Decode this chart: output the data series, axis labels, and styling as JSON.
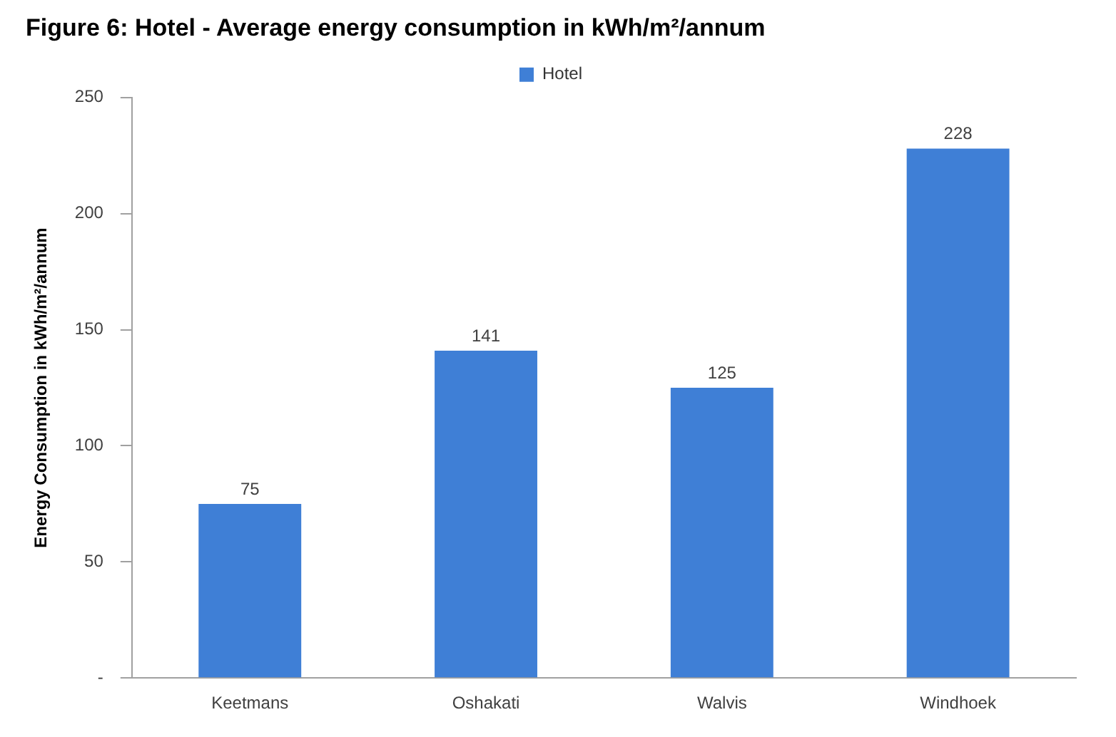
{
  "chart_data": {
    "type": "bar",
    "title": "Figure 6: Hotel - Average energy consumption in kWh/m²/annum",
    "ylabel": "Energy Consumption in kWh/m²/annum",
    "categories": [
      "Keetmans",
      "Oshakati",
      "Walvis",
      "Windhoek"
    ],
    "series": [
      {
        "name": "Hotel",
        "color": "#3f7fd6",
        "values": [
          75,
          141,
          125,
          228
        ]
      }
    ],
    "ylim": [
      0,
      250
    ],
    "yticks": [
      {
        "value": 0,
        "label": "-"
      },
      50,
      100,
      150,
      200,
      250
    ],
    "grid": false,
    "legend": "top",
    "data_labels": true
  }
}
